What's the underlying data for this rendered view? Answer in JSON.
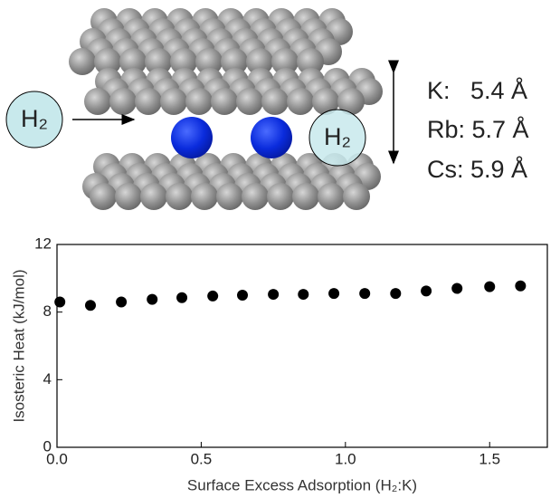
{
  "diagram": {
    "molecule_labels": [
      "H₂",
      "H₂"
    ],
    "spacings": [
      "K:   5.4 Å",
      "Rb: 5.7 Å",
      "Cs: 5.9 Å"
    ]
  },
  "chart_data": {
    "type": "scatter",
    "xlabel": "Surface Excess Adsorption (H₂:K)",
    "ylabel": "Isosteric Heat (kJ/mol)",
    "x": [
      0.01,
      0.116,
      0.223,
      0.33,
      0.433,
      0.54,
      0.643,
      0.75,
      0.854,
      0.96,
      1.067,
      1.174,
      1.28,
      1.387,
      1.5,
      1.607
    ],
    "series": [
      {
        "color": "#000000",
        "values": [
          8.6,
          8.4,
          8.6,
          8.75,
          8.85,
          8.95,
          9.0,
          9.05,
          9.05,
          9.1,
          9.1,
          9.1,
          9.25,
          9.4,
          9.5,
          9.55
        ]
      }
    ],
    "xlim": [
      0,
      1.7
    ],
    "ylim": [
      0,
      12
    ],
    "xticks": [
      {
        "value": 0,
        "label": "0.0"
      },
      {
        "value": 0.5,
        "label": "0.5"
      },
      {
        "value": 1,
        "label": "1.0"
      },
      {
        "value": 1.5,
        "label": "1.5"
      }
    ],
    "yticks": [
      0,
      4,
      8,
      12
    ]
  }
}
